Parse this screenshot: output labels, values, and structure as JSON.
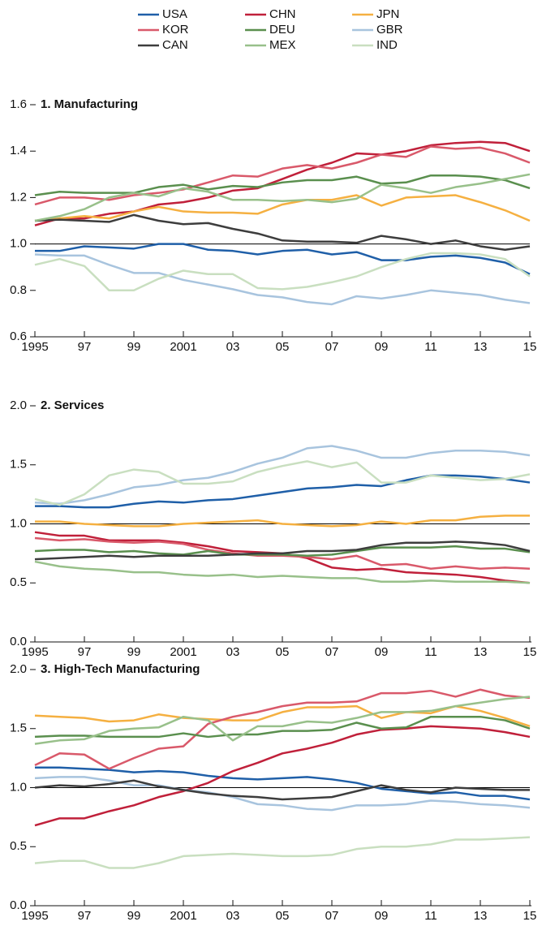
{
  "chart_data": [
    {
      "type": "line",
      "title": "1. Manufacturing",
      "x": [
        1995,
        1996,
        1997,
        1998,
        1999,
        2000,
        2001,
        2002,
        2003,
        2004,
        2005,
        2006,
        2007,
        2008,
        2009,
        2010,
        2011,
        2012,
        2013,
        2014,
        2015
      ],
      "xlim": [
        1995,
        2015
      ],
      "xticks": [
        {
          "value": 1995,
          "label": "1995"
        },
        {
          "value": 1997,
          "label": "97"
        },
        {
          "value": 1999,
          "label": "99"
        },
        {
          "value": 2001,
          "label": "2001"
        },
        {
          "value": 2003,
          "label": "03"
        },
        {
          "value": 2005,
          "label": "05"
        },
        {
          "value": 2007,
          "label": "07"
        },
        {
          "value": 2009,
          "label": "09"
        },
        {
          "value": 2011,
          "label": "11"
        },
        {
          "value": 2013,
          "label": "13"
        },
        {
          "value": 2015,
          "label": "15"
        }
      ],
      "ylim": [
        0.6,
        1.6
      ],
      "yticks": [
        1.6,
        1.4,
        1.2,
        {
          "value": 1,
          "label": "1.0"
        },
        0.8,
        0.6
      ],
      "hline": 1,
      "series": [
        {
          "name": "USA",
          "color": "#1f5fa8",
          "values": [
            0.97,
            0.97,
            0.99,
            0.985,
            0.98,
            1.0,
            1.0,
            0.975,
            0.97,
            0.955,
            0.97,
            0.975,
            0.955,
            0.965,
            0.93,
            0.93,
            0.945,
            0.95,
            0.94,
            0.92,
            0.87
          ]
        },
        {
          "name": "CHN",
          "color": "#c0203a",
          "values": [
            1.08,
            1.11,
            1.11,
            1.13,
            1.14,
            1.17,
            1.18,
            1.2,
            1.23,
            1.24,
            1.28,
            1.32,
            1.35,
            1.39,
            1.385,
            1.4,
            1.425,
            1.435,
            1.44,
            1.435,
            1.4
          ]
        },
        {
          "name": "JPN",
          "color": "#f5b041",
          "values": [
            1.1,
            1.11,
            1.12,
            1.11,
            1.14,
            1.16,
            1.14,
            1.135,
            1.135,
            1.13,
            1.17,
            1.19,
            1.19,
            1.21,
            1.165,
            1.2,
            1.205,
            1.21,
            1.18,
            1.145,
            1.1
          ]
        },
        {
          "name": "KOR",
          "color": "#d9596a",
          "values": [
            1.17,
            1.2,
            1.2,
            1.19,
            1.21,
            1.22,
            1.235,
            1.265,
            1.295,
            1.29,
            1.325,
            1.34,
            1.325,
            1.35,
            1.385,
            1.375,
            1.42,
            1.41,
            1.415,
            1.39,
            1.35
          ]
        },
        {
          "name": "DEU",
          "color": "#5a8f4e",
          "values": [
            1.21,
            1.225,
            1.22,
            1.22,
            1.22,
            1.245,
            1.255,
            1.235,
            1.25,
            1.245,
            1.265,
            1.275,
            1.275,
            1.29,
            1.26,
            1.265,
            1.295,
            1.295,
            1.29,
            1.275,
            1.24
          ]
        },
        {
          "name": "GBR",
          "color": "#a8c4de",
          "values": [
            0.955,
            0.95,
            0.95,
            0.91,
            0.875,
            0.875,
            0.845,
            0.825,
            0.805,
            0.78,
            0.77,
            0.75,
            0.74,
            0.775,
            0.765,
            0.78,
            0.8,
            0.79,
            0.78,
            0.76,
            0.745
          ]
        },
        {
          "name": "CAN",
          "color": "#3d3d3d",
          "values": [
            1.1,
            1.105,
            1.1,
            1.095,
            1.125,
            1.1,
            1.085,
            1.09,
            1.065,
            1.045,
            1.015,
            1.01,
            1.01,
            1.005,
            1.035,
            1.02,
            1.0,
            1.015,
            0.99,
            0.975,
            0.99
          ]
        },
        {
          "name": "MEX",
          "color": "#98c08a",
          "values": [
            1.1,
            1.12,
            1.15,
            1.2,
            1.22,
            1.205,
            1.24,
            1.225,
            1.19,
            1.19,
            1.185,
            1.19,
            1.18,
            1.195,
            1.255,
            1.24,
            1.22,
            1.245,
            1.26,
            1.28,
            1.3
          ]
        },
        {
          "name": "IND",
          "color": "#c9dfc0",
          "values": [
            0.91,
            0.935,
            0.905,
            0.8,
            0.8,
            0.85,
            0.885,
            0.87,
            0.87,
            0.81,
            0.805,
            0.815,
            0.835,
            0.86,
            0.9,
            0.935,
            0.96,
            0.96,
            0.955,
            0.935,
            0.86
          ]
        }
      ]
    },
    {
      "type": "line",
      "title": "2. Services",
      "x": [
        1995,
        1996,
        1997,
        1998,
        1999,
        2000,
        2001,
        2002,
        2003,
        2004,
        2005,
        2006,
        2007,
        2008,
        2009,
        2010,
        2011,
        2012,
        2013,
        2014,
        2015
      ],
      "xlim": [
        1995,
        2015
      ],
      "xticks": [
        {
          "value": 1995,
          "label": "1995"
        },
        {
          "value": 1997,
          "label": "97"
        },
        {
          "value": 1999,
          "label": "99"
        },
        {
          "value": 2001,
          "label": "2001"
        },
        {
          "value": 2003,
          "label": "03"
        },
        {
          "value": 2005,
          "label": "05"
        },
        {
          "value": 2007,
          "label": "07"
        },
        {
          "value": 2009,
          "label": "09"
        },
        {
          "value": 2011,
          "label": "11"
        },
        {
          "value": 2013,
          "label": "13"
        },
        {
          "value": 2015,
          "label": "15"
        }
      ],
      "ylim": [
        0,
        2
      ],
      "yticks": [
        {
          "value": 2,
          "label": "2.0"
        },
        1.5,
        {
          "value": 1,
          "label": "1.0"
        },
        0.5,
        {
          "value": 0,
          "label": "0.0"
        }
      ],
      "hline": 1,
      "series": [
        {
          "name": "USA",
          "color": "#1f5fa8",
          "values": [
            1.15,
            1.15,
            1.14,
            1.14,
            1.17,
            1.19,
            1.18,
            1.2,
            1.21,
            1.24,
            1.27,
            1.3,
            1.31,
            1.33,
            1.32,
            1.37,
            1.41,
            1.41,
            1.4,
            1.38,
            1.35
          ]
        },
        {
          "name": "CHN",
          "color": "#c0203a",
          "values": [
            0.93,
            0.9,
            0.9,
            0.86,
            0.86,
            0.86,
            0.84,
            0.81,
            0.77,
            0.76,
            0.75,
            0.71,
            0.63,
            0.61,
            0.62,
            0.59,
            0.58,
            0.57,
            0.55,
            0.52,
            0.5
          ]
        },
        {
          "name": "JPN",
          "color": "#f5b041",
          "values": [
            1.02,
            1.02,
            1.0,
            0.99,
            0.98,
            0.98,
            1.0,
            1.01,
            1.02,
            1.03,
            1.0,
            0.99,
            0.98,
            0.99,
            1.02,
            1.0,
            1.03,
            1.03,
            1.06,
            1.07,
            1.07
          ]
        },
        {
          "name": "KOR",
          "color": "#d9596a",
          "values": [
            0.88,
            0.86,
            0.87,
            0.85,
            0.84,
            0.85,
            0.83,
            0.78,
            0.75,
            0.73,
            0.73,
            0.72,
            0.7,
            0.73,
            0.65,
            0.66,
            0.62,
            0.64,
            0.62,
            0.63,
            0.62
          ]
        },
        {
          "name": "DEU",
          "color": "#5a8f4e",
          "values": [
            0.77,
            0.78,
            0.78,
            0.76,
            0.77,
            0.75,
            0.74,
            0.77,
            0.74,
            0.74,
            0.74,
            0.73,
            0.74,
            0.77,
            0.8,
            0.8,
            0.8,
            0.81,
            0.79,
            0.79,
            0.76
          ]
        },
        {
          "name": "GBR",
          "color": "#a8c4de",
          "values": [
            1.18,
            1.17,
            1.2,
            1.25,
            1.31,
            1.33,
            1.37,
            1.39,
            1.44,
            1.51,
            1.56,
            1.64,
            1.66,
            1.62,
            1.56,
            1.56,
            1.6,
            1.62,
            1.62,
            1.61,
            1.58
          ]
        },
        {
          "name": "CAN",
          "color": "#3d3d3d",
          "values": [
            0.7,
            0.71,
            0.72,
            0.73,
            0.72,
            0.73,
            0.73,
            0.73,
            0.74,
            0.75,
            0.75,
            0.77,
            0.77,
            0.78,
            0.82,
            0.84,
            0.84,
            0.85,
            0.84,
            0.82,
            0.77
          ]
        },
        {
          "name": "MEX",
          "color": "#98c08a",
          "values": [
            0.68,
            0.64,
            0.62,
            0.61,
            0.59,
            0.59,
            0.57,
            0.56,
            0.57,
            0.55,
            0.56,
            0.55,
            0.54,
            0.54,
            0.51,
            0.51,
            0.52,
            0.51,
            0.51,
            0.51,
            0.5
          ]
        },
        {
          "name": "IND",
          "color": "#c9dfc0",
          "values": [
            1.21,
            1.16,
            1.25,
            1.41,
            1.46,
            1.44,
            1.34,
            1.34,
            1.36,
            1.44,
            1.49,
            1.53,
            1.48,
            1.52,
            1.35,
            1.35,
            1.41,
            1.39,
            1.37,
            1.38,
            1.42
          ]
        }
      ]
    },
    {
      "type": "line",
      "title": "3. High-Tech Manufacturing",
      "x": [
        1995,
        1996,
        1997,
        1998,
        1999,
        2000,
        2001,
        2002,
        2003,
        2004,
        2005,
        2006,
        2007,
        2008,
        2009,
        2010,
        2011,
        2012,
        2013,
        2014,
        2015
      ],
      "xlim": [
        1995,
        2015
      ],
      "xticks": [
        {
          "value": 1995,
          "label": "1995"
        },
        {
          "value": 1997,
          "label": "97"
        },
        {
          "value": 1999,
          "label": "99"
        },
        {
          "value": 2001,
          "label": "2001"
        },
        {
          "value": 2003,
          "label": "03"
        },
        {
          "value": 2005,
          "label": "05"
        },
        {
          "value": 2007,
          "label": "07"
        },
        {
          "value": 2009,
          "label": "09"
        },
        {
          "value": 2011,
          "label": "11"
        },
        {
          "value": 2013,
          "label": "13"
        },
        {
          "value": 2015,
          "label": "15"
        }
      ],
      "ylim": [
        0,
        2
      ],
      "yticks": [
        {
          "value": 2,
          "label": "2.0"
        },
        1.5,
        {
          "value": 1,
          "label": "1.0"
        },
        0.5,
        {
          "value": 0,
          "label": "0.0"
        }
      ],
      "hline": 1,
      "series": [
        {
          "name": "USA",
          "color": "#1f5fa8",
          "values": [
            1.17,
            1.17,
            1.16,
            1.15,
            1.13,
            1.14,
            1.13,
            1.1,
            1.08,
            1.07,
            1.08,
            1.09,
            1.07,
            1.04,
            0.99,
            0.97,
            0.95,
            0.96,
            0.93,
            0.93,
            0.9
          ]
        },
        {
          "name": "CHN",
          "color": "#c0203a",
          "values": [
            0.68,
            0.74,
            0.74,
            0.8,
            0.85,
            0.92,
            0.97,
            1.04,
            1.14,
            1.21,
            1.29,
            1.33,
            1.38,
            1.45,
            1.49,
            1.5,
            1.52,
            1.51,
            1.5,
            1.47,
            1.43
          ]
        },
        {
          "name": "JPN",
          "color": "#f5b041",
          "values": [
            1.61,
            1.6,
            1.59,
            1.56,
            1.57,
            1.62,
            1.59,
            1.58,
            1.57,
            1.57,
            1.64,
            1.68,
            1.68,
            1.69,
            1.59,
            1.64,
            1.63,
            1.69,
            1.65,
            1.59,
            1.52
          ]
        },
        {
          "name": "KOR",
          "color": "#d9596a",
          "values": [
            1.19,
            1.29,
            1.28,
            1.16,
            1.25,
            1.33,
            1.35,
            1.54,
            1.6,
            1.64,
            1.69,
            1.72,
            1.72,
            1.73,
            1.8,
            1.8,
            1.82,
            1.77,
            1.83,
            1.78,
            1.76
          ]
        },
        {
          "name": "DEU",
          "color": "#5a8f4e",
          "values": [
            1.43,
            1.44,
            1.44,
            1.43,
            1.43,
            1.43,
            1.46,
            1.43,
            1.45,
            1.45,
            1.48,
            1.48,
            1.49,
            1.55,
            1.5,
            1.51,
            1.6,
            1.6,
            1.6,
            1.57,
            1.5
          ]
        },
        {
          "name": "GBR",
          "color": "#a8c4de",
          "values": [
            1.08,
            1.09,
            1.09,
            1.06,
            1.02,
            1.02,
            0.98,
            0.96,
            0.92,
            0.86,
            0.85,
            0.82,
            0.81,
            0.85,
            0.85,
            0.86,
            0.89,
            0.88,
            0.86,
            0.85,
            0.83
          ]
        },
        {
          "name": "CAN",
          "color": "#3d3d3d",
          "values": [
            1.0,
            1.02,
            1.01,
            1.03,
            1.06,
            1.01,
            0.98,
            0.95,
            0.93,
            0.92,
            0.9,
            0.91,
            0.92,
            0.97,
            1.02,
            0.98,
            0.96,
            1.0,
            0.99,
            0.98,
            0.98
          ]
        },
        {
          "name": "MEX",
          "color": "#98c08a",
          "values": [
            1.37,
            1.4,
            1.41,
            1.48,
            1.5,
            1.51,
            1.6,
            1.57,
            1.4,
            1.52,
            1.52,
            1.56,
            1.55,
            1.59,
            1.64,
            1.64,
            1.65,
            1.69,
            1.72,
            1.75,
            1.77
          ]
        },
        {
          "name": "IND",
          "color": "#c9dfc0",
          "values": [
            0.36,
            0.38,
            0.38,
            0.32,
            0.32,
            0.36,
            0.42,
            0.43,
            0.44,
            0.43,
            0.42,
            0.42,
            0.43,
            0.48,
            0.5,
            0.5,
            0.52,
            0.56,
            0.56,
            0.57,
            0.58
          ]
        }
      ]
    }
  ]
}
